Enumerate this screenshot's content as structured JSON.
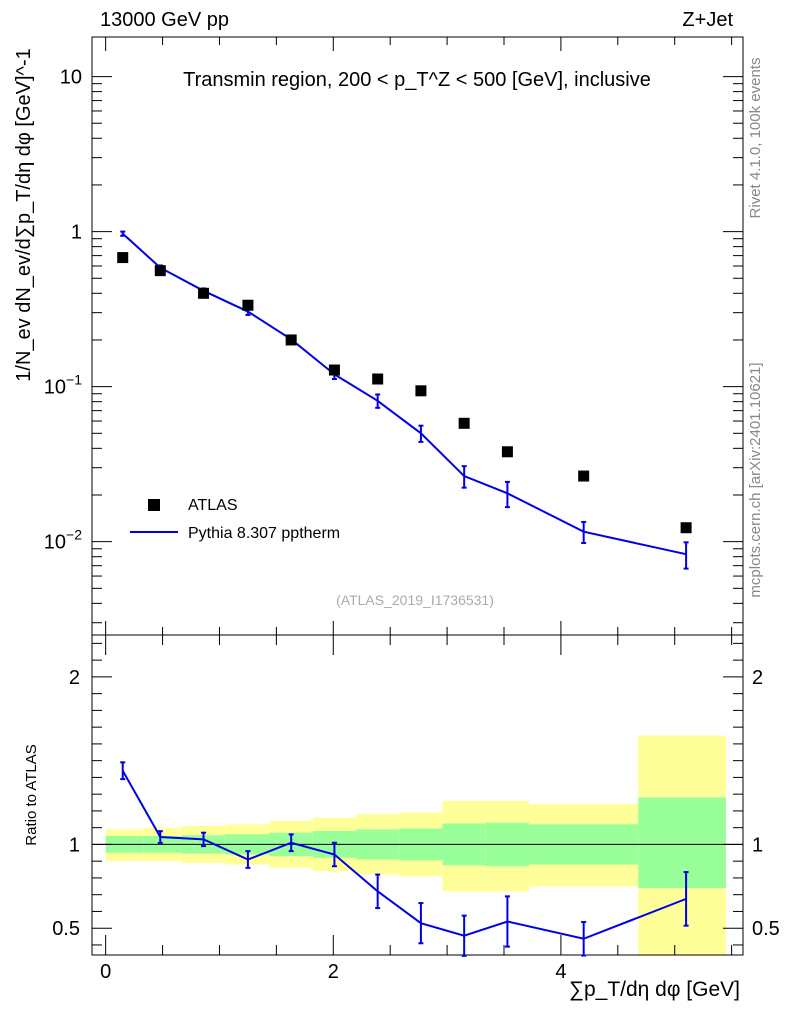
{
  "chart_data": [
    {
      "type": "scatter",
      "panel": "main",
      "title": "Transmin region, 200 < p_T^Z < 500 [GeV], inclusive",
      "top_left_label": "13000 GeV pp",
      "top_right_label": "Z+Jet",
      "analysis_id": "(ATLAS_2019_I1736531)",
      "ylabel": "1/N_ev dN_ev/d∑p_T/dη dφ [GeV]^-1",
      "yscale": "log",
      "ylim": [
        0.0025,
        18
      ],
      "xlim": [
        -0.12,
        5.6
      ],
      "ytick_labels": [
        "10^-2",
        "10^-1",
        "1",
        "10"
      ],
      "legend": {
        "placement": "bottom-left",
        "entries": [
          "ATLAS",
          "Pythia 8.307 pptherm"
        ]
      },
      "series": [
        {
          "name": "ATLAS",
          "style": "marker",
          "x": [
            0.15,
            0.48,
            0.86,
            1.25,
            1.63,
            2.01,
            2.39,
            2.77,
            3.15,
            3.53,
            4.2,
            5.1
          ],
          "values": [
            0.68,
            0.56,
            0.4,
            0.335,
            0.2,
            0.128,
            0.112,
            0.094,
            0.058,
            0.038,
            0.0265,
            0.0123
          ]
        },
        {
          "name": "Pythia 8.307 pptherm",
          "style": "line",
          "color": "#0000e6",
          "x": [
            0.15,
            0.48,
            0.86,
            1.25,
            1.63,
            2.01,
            2.39,
            2.77,
            3.15,
            3.53,
            4.2,
            5.1
          ],
          "values": [
            0.97,
            0.585,
            0.415,
            0.305,
            0.202,
            0.12,
            0.081,
            0.05,
            0.0265,
            0.0205,
            0.0116,
            0.0083
          ],
          "err_up": [
            0.03,
            0.02,
            0.015,
            0.015,
            0.01,
            0.008,
            0.008,
            0.006,
            0.0042,
            0.0038,
            0.0018,
            0.0016
          ],
          "err_down": [
            0.03,
            0.02,
            0.015,
            0.015,
            0.01,
            0.008,
            0.008,
            0.006,
            0.0042,
            0.0038,
            0.0018,
            0.0016
          ]
        }
      ]
    },
    {
      "type": "line",
      "panel": "ratio",
      "ylabel": "Ratio to ATLAS",
      "xlabel": "∑p_T/dη dφ [GeV]",
      "xlim": [
        -0.12,
        5.6
      ],
      "ylim": [
        0.34,
        2.25
      ],
      "xtick_labels": [
        "0",
        "2",
        "4"
      ],
      "ytick_labels": [
        "0.5",
        "1",
        "2"
      ],
      "reference_line": 1,
      "bin_edges": [
        0.0,
        0.33,
        0.67,
        1.05,
        1.44,
        1.82,
        2.2,
        2.58,
        2.96,
        3.34,
        3.72,
        4.68,
        5.45
      ],
      "band_outer_low": [
        0.9,
        0.9,
        0.89,
        0.88,
        0.86,
        0.84,
        0.82,
        0.81,
        0.72,
        0.72,
        0.75,
        0.34
      ],
      "band_outer_high": [
        1.09,
        1.1,
        1.11,
        1.12,
        1.14,
        1.16,
        1.18,
        1.19,
        1.26,
        1.26,
        1.24,
        1.65
      ],
      "band_inner_low": [
        0.95,
        0.95,
        0.945,
        0.94,
        0.93,
        0.92,
        0.91,
        0.905,
        0.875,
        0.87,
        0.88,
        0.74
      ],
      "band_inner_high": [
        1.05,
        1.05,
        1.055,
        1.06,
        1.07,
        1.08,
        1.09,
        1.095,
        1.125,
        1.13,
        1.12,
        1.28
      ],
      "series": [
        {
          "name": "Pythia 8.307 pptherm / ATLAS",
          "color": "#0000e6",
          "x": [
            0.15,
            0.48,
            0.86,
            1.25,
            1.63,
            2.01,
            2.39,
            2.77,
            3.15,
            3.53,
            4.2,
            5.1
          ],
          "values": [
            1.44,
            1.044,
            1.03,
            0.91,
            1.01,
            0.94,
            0.72,
            0.53,
            0.455,
            0.54,
            0.437,
            0.675
          ],
          "err_up": [
            0.05,
            0.035,
            0.04,
            0.05,
            0.05,
            0.07,
            0.1,
            0.12,
            0.12,
            0.15,
            0.1,
            0.16
          ],
          "err_down": [
            0.05,
            0.035,
            0.04,
            0.05,
            0.05,
            0.07,
            0.1,
            0.12,
            0.12,
            0.15,
            0.1,
            0.16
          ]
        }
      ]
    }
  ],
  "side_text": {
    "rivet": "Rivet 4.1.0,  100k events",
    "site": "mcplots.cern.ch [arXiv:2401.10621]"
  }
}
